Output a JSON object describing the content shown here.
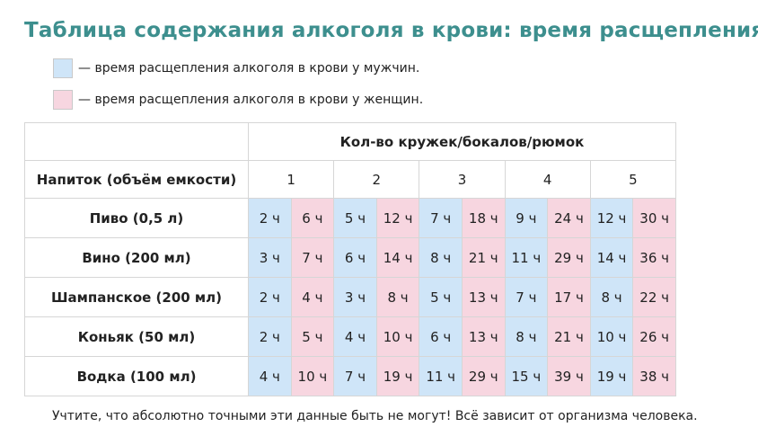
{
  "title": "Таблица содержания алкоголя в крови: время расщепления",
  "colors": {
    "title": "#3d8f8e",
    "men": "#cfe5f8",
    "women": "#f7d6e0"
  },
  "legend": {
    "men": "— время расщепления алкоголя в крови у мужчин.",
    "women": "— время расщепления алкоголя в крови у женщин."
  },
  "table": {
    "group_header": "Кол-во кружек/бокалов/рюмок",
    "drink_header": "Напиток (объём емкости)",
    "counts": [
      "1",
      "2",
      "3",
      "4",
      "5"
    ],
    "rows": [
      {
        "drink": "Пиво (0,5 л)",
        "values": [
          {
            "men": "2 ч",
            "women": "6 ч"
          },
          {
            "men": "5 ч",
            "women": "12 ч"
          },
          {
            "men": "7 ч",
            "women": "18 ч"
          },
          {
            "men": "9 ч",
            "women": "24 ч"
          },
          {
            "men": "12 ч",
            "women": "30 ч"
          }
        ]
      },
      {
        "drink": "Вино (200 мл)",
        "values": [
          {
            "men": "3 ч",
            "women": "7 ч"
          },
          {
            "men": "6 ч",
            "women": "14 ч"
          },
          {
            "men": "8 ч",
            "women": "21 ч"
          },
          {
            "men": "11 ч",
            "women": "29 ч"
          },
          {
            "men": "14 ч",
            "women": "36 ч"
          }
        ]
      },
      {
        "drink": "Шампанское (200 мл)",
        "values": [
          {
            "men": "2 ч",
            "women": "4 ч"
          },
          {
            "men": "3 ч",
            "women": "8 ч"
          },
          {
            "men": "5 ч",
            "women": "13 ч"
          },
          {
            "men": "7 ч",
            "women": "17 ч"
          },
          {
            "men": "8 ч",
            "women": "22 ч"
          }
        ]
      },
      {
        "drink": "Коньяк (50 мл)",
        "values": [
          {
            "men": "2 ч",
            "women": "5 ч"
          },
          {
            "men": "4 ч",
            "women": "10 ч"
          },
          {
            "men": "6 ч",
            "women": "13 ч"
          },
          {
            "men": "8 ч",
            "women": "21 ч"
          },
          {
            "men": "10 ч",
            "women": "26 ч"
          }
        ]
      },
      {
        "drink": "Водка (100 мл)",
        "values": [
          {
            "men": "4 ч",
            "women": "10 ч"
          },
          {
            "men": "7 ч",
            "women": "19 ч"
          },
          {
            "men": "11 ч",
            "women": "29 ч"
          },
          {
            "men": "15 ч",
            "women": "39 ч"
          },
          {
            "men": "19 ч",
            "women": "38 ч"
          }
        ]
      }
    ]
  },
  "footer": "Учтите, что абсолютно точными эти данные быть не могут! Всё зависит от организма человека."
}
